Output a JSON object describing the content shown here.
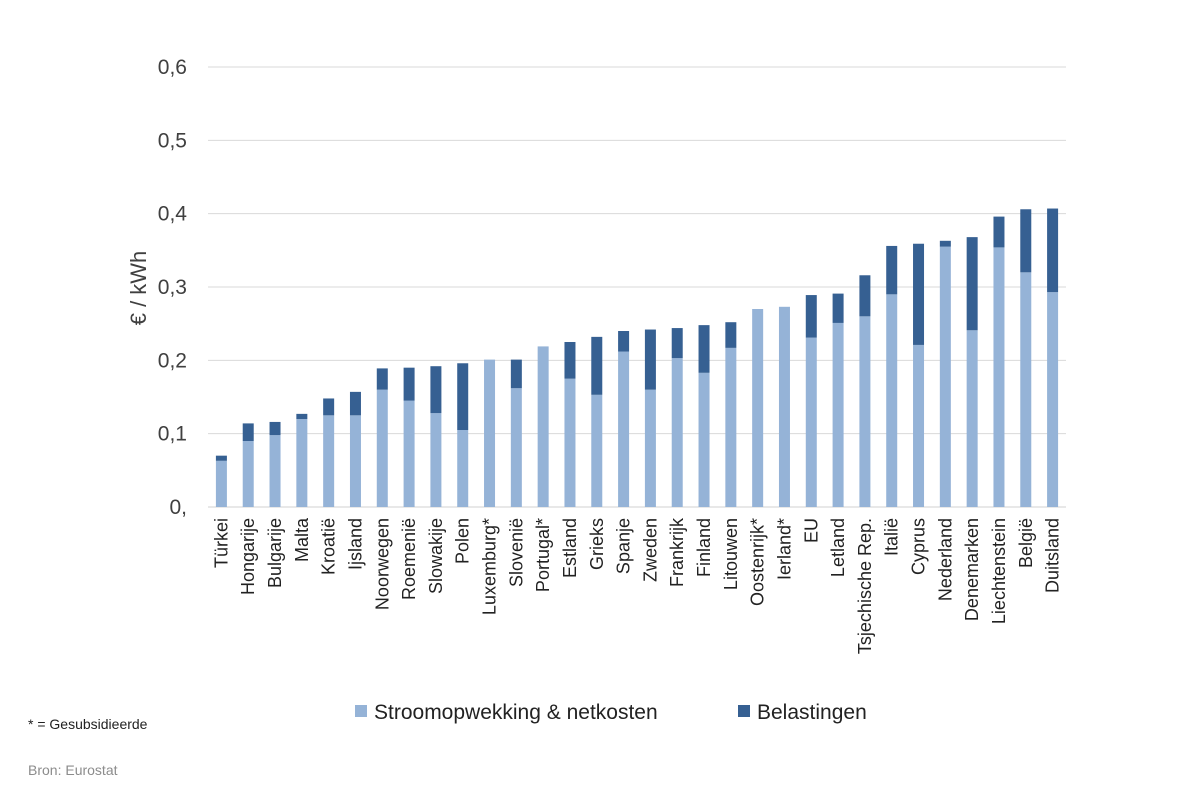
{
  "chart_data": {
    "type": "bar",
    "stacked": true,
    "title": "",
    "xlabel": "",
    "ylabel": "€ / kWh",
    "ylim": [
      0,
      0.6
    ],
    "yticks": [
      0,
      0.1,
      0.2,
      0.3,
      0.4,
      0.5,
      0.6
    ],
    "ytick_labels": [
      "0,",
      "0,1",
      "0,2",
      "0,3",
      "0,4",
      "0,5",
      "0,6"
    ],
    "grid": true,
    "legend": "bottom",
    "categories": [
      "Türkei",
      "Hongarije",
      "Bulgarije",
      "Malta",
      "Kroatië",
      "Ijsland",
      "Noorwegen",
      "Roemenië",
      "Slowakije",
      "Polen",
      "Luxemburg*",
      "Slovenië",
      "Portugal*",
      "Estland",
      "Grieks",
      "Spanje",
      "Zweden",
      "Frankrijk",
      "Finland",
      "Litouwen",
      "Oostenrijk*",
      "Ierland*",
      "EU",
      "Letland",
      "Tsjechische Rep.",
      "Italië",
      "Cyprus",
      "Nederland",
      "Denemarken",
      "Liechtenstein",
      "België",
      "Duitsland"
    ],
    "series": [
      {
        "name": "Stroomopwekking & netkosten",
        "color": "#95b3d7",
        "values": [
          0.063,
          0.09,
          0.098,
          0.12,
          0.125,
          0.125,
          0.16,
          0.145,
          0.128,
          0.105,
          0.201,
          0.162,
          0.219,
          0.175,
          0.153,
          0.212,
          0.16,
          0.203,
          0.183,
          0.217,
          0.27,
          0.273,
          0.231,
          0.251,
          0.26,
          0.29,
          0.221,
          0.355,
          0.241,
          0.354,
          0.32,
          0.293
        ]
      },
      {
        "name": "Belastingen",
        "color": "#366092",
        "values": [
          0.007,
          0.024,
          0.018,
          0.007,
          0.023,
          0.032,
          0.029,
          0.045,
          0.064,
          0.091,
          0.0,
          0.039,
          0.0,
          0.05,
          0.079,
          0.028,
          0.082,
          0.041,
          0.065,
          0.035,
          0.0,
          0.0,
          0.058,
          0.04,
          0.056,
          0.066,
          0.138,
          0.008,
          0.127,
          0.042,
          0.086,
          0.114
        ]
      }
    ]
  },
  "footnote": "* = Gesubsidieerde",
  "source": "Bron: Eurostat"
}
